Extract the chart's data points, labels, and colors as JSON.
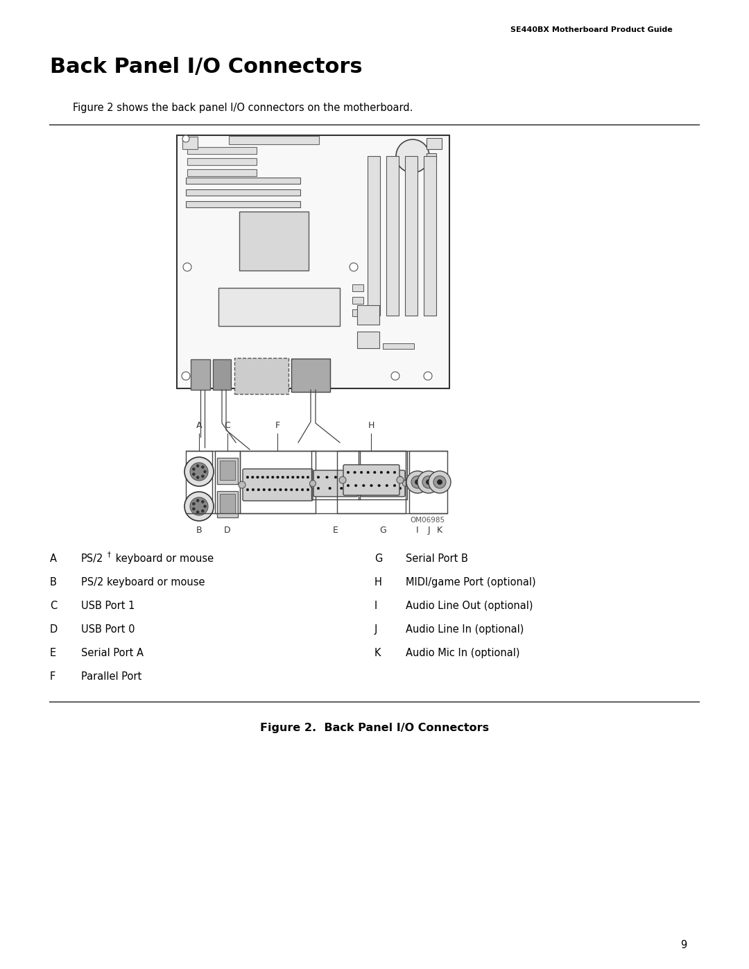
{
  "header_text": "SE440BX Motherboard Product Guide",
  "title": "Back Panel I/O Connectors",
  "intro_text": "Figure 2 shows the back panel I/O connectors on the motherboard.",
  "figure_caption": "Figure 2.  Back Panel I/O Connectors",
  "page_number": "9",
  "left_labels": [
    [
      "A",
      "PS/2† keyboard or mouse"
    ],
    [
      "B",
      "PS/2 keyboard or mouse"
    ],
    [
      "C",
      "USB Port 1"
    ],
    [
      "D",
      "USB Port 0"
    ],
    [
      "E",
      "Serial Port A"
    ],
    [
      "F",
      "Parallel Port"
    ]
  ],
  "right_labels": [
    [
      "G",
      "Serial Port B"
    ],
    [
      "H",
      "MIDI/game Port (optional)"
    ],
    [
      "I",
      "Audio Line Out (optional)"
    ],
    [
      "J",
      "Audio Line In (optional)"
    ],
    [
      "K",
      "Audio Mic In (optional)"
    ]
  ],
  "bg_color": "#ffffff",
  "text_color": "#000000",
  "board_fill": "#f8f8f8",
  "connector_fill": "#cccccc",
  "dark_fill": "#555555"
}
